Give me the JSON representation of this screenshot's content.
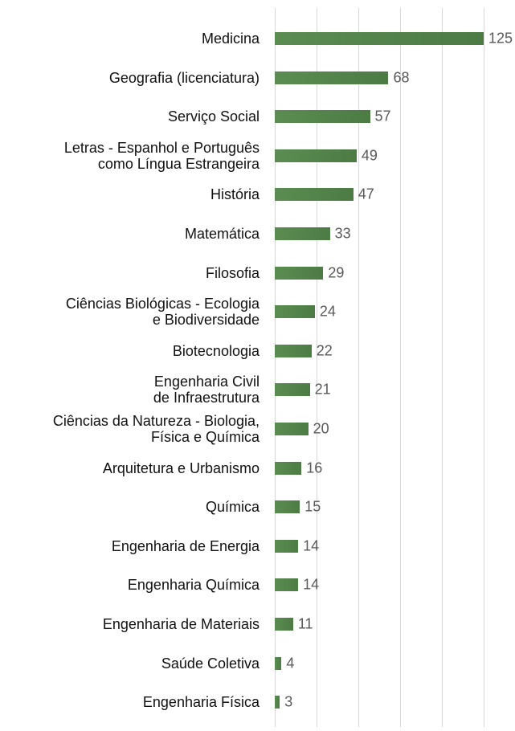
{
  "chart_data": {
    "type": "barh",
    "categories": [
      "Medicina",
      "Geografia (licenciatura)",
      "Serviço Social",
      "Letras - Espanhol e Português\ncomo Língua Estrangeira",
      "História",
      "Matemática",
      "Filosofia",
      "Ciências Biológicas - Ecologia\ne Biodiversidade",
      "Biotecnologia",
      "Engenharia Civil\nde Infraestrutura",
      "Ciências da Natureza - Biologia,\nFísica e Química",
      "Arquitetura e Urbanismo",
      "Química",
      "Engenharia de Energia",
      "Engenharia Química",
      "Engenharia de Materiais",
      "Saúde Coletiva",
      "Engenharia Física"
    ],
    "values": [
      125,
      68,
      57,
      49,
      47,
      33,
      29,
      24,
      22,
      21,
      20,
      16,
      15,
      14,
      14,
      11,
      4,
      3
    ],
    "color": "#5b8c51",
    "xlim": [
      0,
      125
    ],
    "xticks": [
      0,
      25,
      50,
      75,
      100,
      125
    ],
    "grid": true
  }
}
